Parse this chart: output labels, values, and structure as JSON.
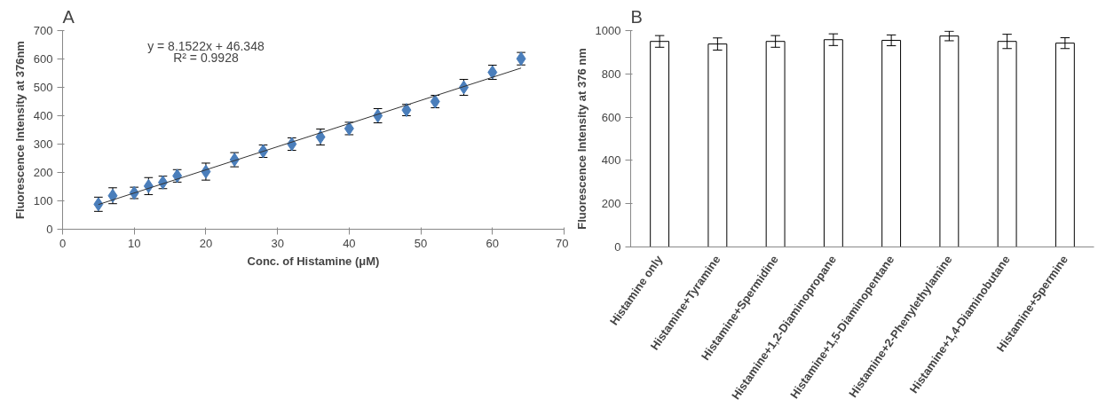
{
  "chart_data": [
    {
      "type": "scatter",
      "title": "A",
      "xlabel": "Conc. of Histamine (μM)",
      "ylabel": "Fluorescence Intensity at 376nm",
      "xlim": [
        0,
        70
      ],
      "xticks": [
        0,
        10,
        20,
        30,
        40,
        50,
        60,
        70
      ],
      "ylim": [
        0,
        700
      ],
      "yticks": [
        0,
        100,
        200,
        300,
        400,
        500,
        600,
        700
      ],
      "grid": false,
      "annotations": [
        "y = 8.1522x + 46.348",
        "R² = 0.9928"
      ],
      "series": [
        {
          "type": "scatter",
          "marker": "diamond",
          "color": "#4a7ebb",
          "x": [
            5,
            7,
            10,
            12,
            14,
            16,
            20,
            24,
            28,
            32,
            36,
            40,
            44,
            48,
            52,
            56,
            60,
            64
          ],
          "values": [
            88,
            118,
            128,
            152,
            165,
            188,
            203,
            245,
            275,
            300,
            325,
            355,
            400,
            420,
            450,
            500,
            553,
            601
          ],
          "errors": [
            25,
            28,
            20,
            30,
            22,
            22,
            30,
            25,
            22,
            22,
            28,
            22,
            25,
            20,
            22,
            28,
            25,
            22
          ]
        },
        {
          "type": "line",
          "color": "#333333",
          "x": [
            5,
            64
          ],
          "values": [
            87,
            568
          ]
        }
      ]
    },
    {
      "type": "bar",
      "title": "B",
      "ylabel": "Fluorescence Intensity at 376 nm",
      "categories": [
        "Histamine only",
        "Histamine+Tyramine",
        "Histamine+Spermidine",
        "Histamine+1,2-Diaminopropane",
        "Histamine+1,5-Diaminopentane",
        "Histamine+2-Phenylethylamine",
        "Histamine+1,4-Diaminobutane",
        "Histamine+Spermine"
      ],
      "ylim": [
        0,
        1000
      ],
      "yticks": [
        0,
        200,
        400,
        600,
        800,
        1000
      ],
      "grid": false,
      "series": [
        {
          "color": "#ffffff",
          "values": [
            950,
            938,
            950,
            958,
            955,
            975,
            950,
            942
          ],
          "errors": [
            27,
            28,
            27,
            27,
            25,
            22,
            33,
            25
          ]
        }
      ]
    }
  ]
}
